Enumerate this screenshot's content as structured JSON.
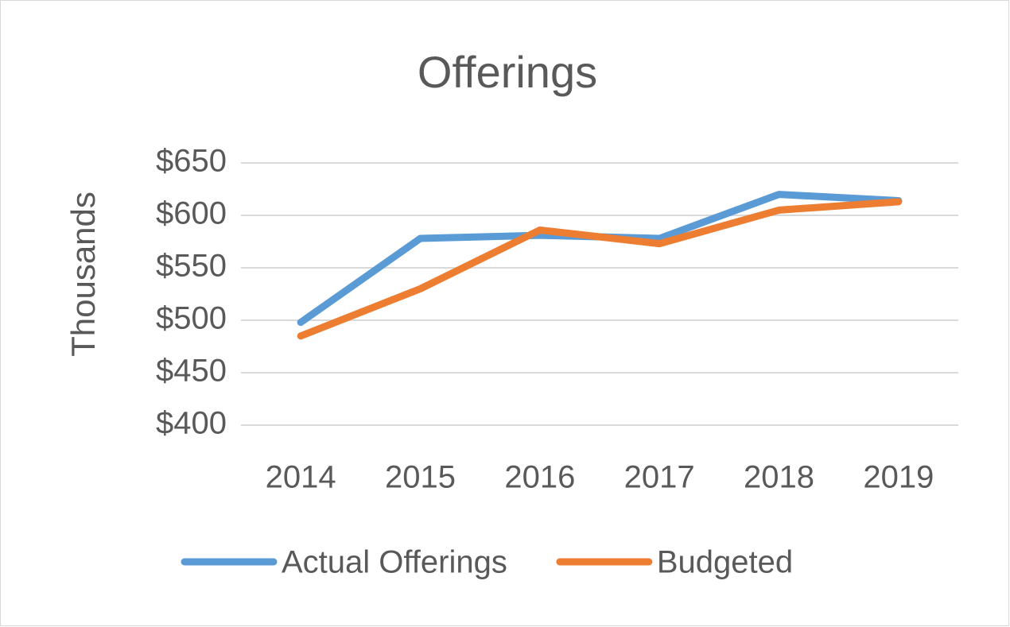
{
  "chart_data": {
    "type": "line",
    "title": "Offerings",
    "y_label": "Thousands",
    "categories": [
      "2014",
      "2015",
      "2016",
      "2017",
      "2018",
      "2019"
    ],
    "series": [
      {
        "name": "Actual Offerings",
        "color": "#5b9bd5",
        "values": [
          498,
          578,
          581,
          578,
          620,
          614
        ]
      },
      {
        "name": "Budgeted",
        "color": "#ed7d31",
        "values": [
          485,
          530,
          586,
          573,
          605,
          613
        ]
      }
    ],
    "ylim": [
      400,
      650
    ],
    "yticks": [
      {
        "value": 400,
        "label": "$400"
      },
      {
        "value": 450,
        "label": "$450"
      },
      {
        "value": 500,
        "label": "$500"
      },
      {
        "value": 550,
        "label": "$550"
      },
      {
        "value": 600,
        "label": "$600"
      },
      {
        "value": 650,
        "label": "$650"
      }
    ],
    "grid": true,
    "legend": "bottom"
  }
}
